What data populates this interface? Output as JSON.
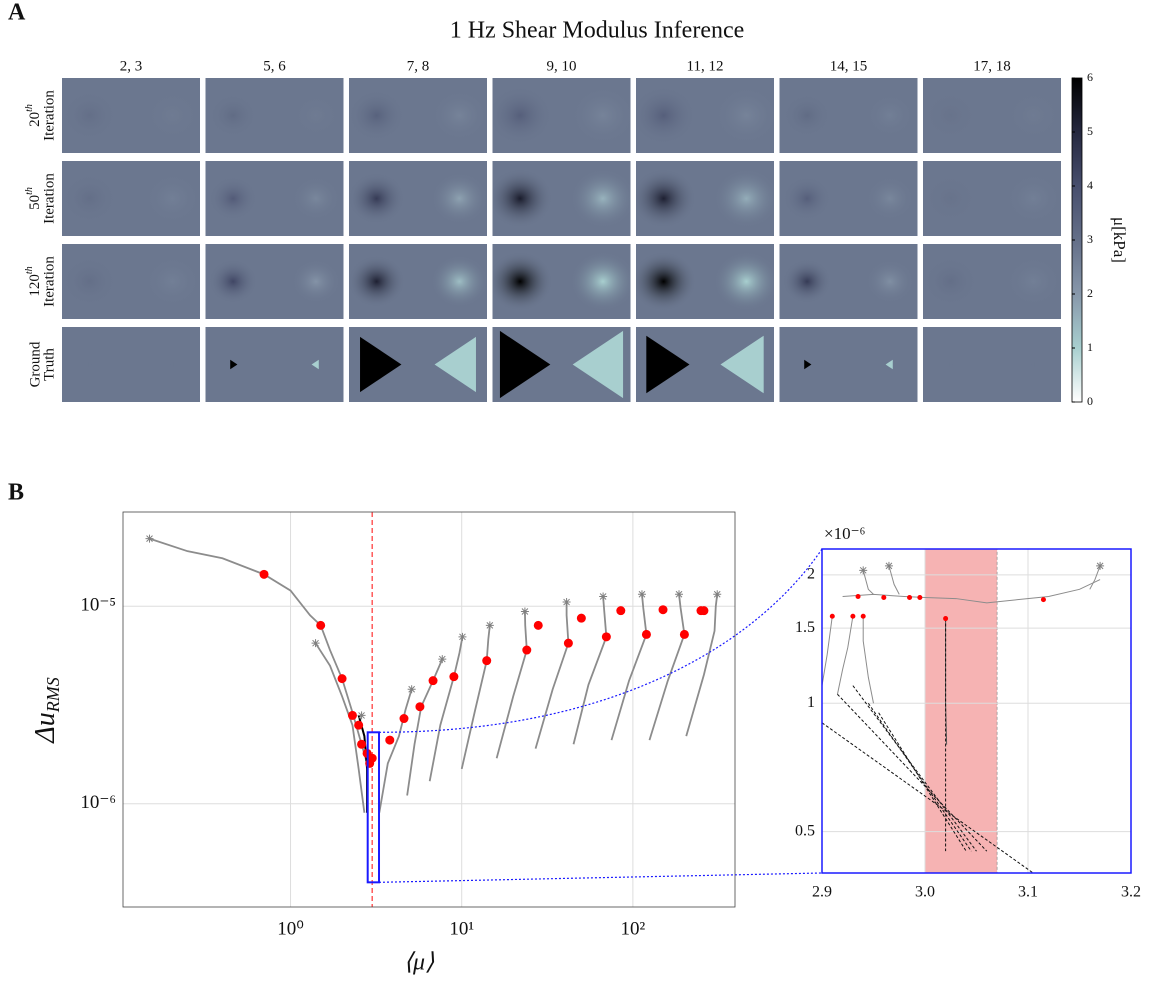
{
  "panel_labels": [
    "A",
    "B"
  ],
  "chart_data": [
    {
      "type": "heatmap",
      "title": "1 Hz Shear Modulus Inference",
      "columns": [
        "2, 3",
        "5, 6",
        "7, 8",
        "9, 10",
        "11, 12",
        "14, 15",
        "17, 18"
      ],
      "rows": [
        {
          "number": "20",
          "suffix": "th",
          "word": "Iteration",
          "shape": "smooth"
        },
        {
          "number": "50",
          "suffix": "th",
          "word": "Iteration",
          "shape": "smooth"
        },
        {
          "number": "120",
          "suffix": "th",
          "word": "Iteration",
          "shape": "smooth"
        },
        {
          "line1": "Ground",
          "line2": "Truth",
          "shape": "block"
        }
      ],
      "values": [
        [
          [
            2.8,
            3.0,
            2.7
          ],
          [
            2.8,
            3.1,
            2.7
          ],
          [
            2.8,
            3.4,
            2.5
          ],
          [
            2.8,
            3.5,
            2.5
          ],
          [
            2.8,
            3.5,
            2.5
          ],
          [
            2.8,
            3.1,
            2.6
          ],
          [
            2.8,
            2.9,
            2.7
          ]
        ],
        [
          [
            2.8,
            3.0,
            2.6
          ],
          [
            2.8,
            3.6,
            2.4
          ],
          [
            2.8,
            4.5,
            1.8
          ],
          [
            2.8,
            5.3,
            1.5
          ],
          [
            2.8,
            5.2,
            1.6
          ],
          [
            2.8,
            3.5,
            2.4
          ],
          [
            2.8,
            2.9,
            2.6
          ]
        ],
        [
          [
            2.8,
            3.0,
            2.6
          ],
          [
            2.8,
            4.2,
            2.1
          ],
          [
            2.8,
            5.2,
            1.3
          ],
          [
            2.8,
            6,
            1
          ],
          [
            2.8,
            6,
            1
          ],
          [
            2.8,
            4.5,
            2.2
          ],
          [
            2.8,
            3.0,
            2.6
          ]
        ],
        [
          [
            2.8,
            2.8,
            2.8
          ],
          [
            2.8,
            6,
            1
          ],
          [
            2.8,
            6,
            1
          ],
          [
            2.8,
            6,
            1
          ],
          [
            2.8,
            6,
            1
          ],
          [
            2.8,
            6,
            1
          ],
          [
            2.8,
            2.8,
            2.8
          ]
        ]
      ],
      "colorbar": {
        "label": "μ[kPa]",
        "lim": [
          0,
          6
        ],
        "ticks": [
          0,
          1,
          2,
          3,
          4,
          5,
          6
        ],
        "colors": [
          "#ffffff",
          "#a8cfcf",
          "#8797aa",
          "#646f88",
          "#474e6d",
          "#25283f",
          "#000000"
        ]
      }
    },
    {
      "type": "line",
      "log_x": true,
      "log_y": true,
      "grid": true,
      "xlabel": "⟨μ⟩",
      "ylabel": {
        "text": "Δu",
        "subscript": "RMS"
      },
      "xlim": [
        0.105,
        395
      ],
      "ylim": [
        3e-07,
        3e-05
      ],
      "xticks": [
        {
          "value": 1,
          "label": "10⁰"
        },
        {
          "value": 10,
          "label": "10¹"
        },
        {
          "value": 100,
          "label": "10²"
        }
      ],
      "yticks": [
        {
          "value": 1e-06,
          "label": "10⁻⁶"
        },
        {
          "value": 1e-05,
          "label": "10⁻⁵"
        }
      ],
      "vline": {
        "value": 3.0,
        "color": "#ff5a5a"
      },
      "series": [
        {
          "color": "#8c8c8c",
          "x": [
            0.15,
            0.25,
            0.4,
            0.7,
            1.0,
            1.3,
            1.5,
            1.7,
            2.0,
            2.3,
            2.6,
            2.8
          ],
          "values": [
            2.2e-05,
            1.9e-05,
            1.75e-05,
            1.45e-05,
            1.2e-05,
            9e-06,
            8e-06,
            6e-06,
            4.3e-06,
            2.9e-06,
            2e-06,
            1.6e-06
          ]
        },
        {
          "color": "#8c8c8c",
          "x": [
            1.4,
            1.7,
            2.0,
            2.3,
            2.5,
            2.7
          ],
          "values": [
            6.5e-06,
            5e-06,
            3.5e-06,
            2.5e-06,
            1.5e-06,
            9e-07
          ]
        },
        {
          "color": "#000000",
          "x": [
            2.5,
            2.7,
            2.8,
            2.8
          ],
          "values": [
            2.8e-06,
            2.2e-06,
            1.5e-06,
            9e-07
          ]
        },
        {
          "color": "#8c8c8c",
          "x": [
            3.3,
            3.7,
            4.3,
            4.7,
            5.1
          ],
          "values": [
            9e-07,
            1.6e-06,
            2.2e-06,
            3e-06,
            3.8e-06
          ]
        },
        {
          "color": "#8c8c8c",
          "x": [
            4.8,
            5.3,
            5.8,
            6.8,
            7.7
          ],
          "values": [
            1.1e-06,
            2e-06,
            3.1e-06,
            4.2e-06,
            5.4e-06
          ]
        },
        {
          "color": "#8c8c8c",
          "x": [
            6.5,
            7.5,
            9,
            9.7,
            10.1
          ],
          "values": [
            1.3e-06,
            2.5e-06,
            4.4e-06,
            5.8e-06,
            7e-06
          ]
        },
        {
          "color": "#8c8c8c",
          "x": [
            10,
            12,
            14,
            14.3,
            14.6
          ],
          "values": [
            1.5e-06,
            3e-06,
            5.3e-06,
            6.8e-06,
            8e-06
          ]
        },
        {
          "color": "#8c8c8c",
          "x": [
            16,
            20,
            24,
            23.5,
            23.4
          ],
          "values": [
            1.7e-06,
            3.5e-06,
            6e-06,
            8e-06,
            9.4e-06
          ]
        },
        {
          "color": "#8c8c8c",
          "x": [
            27,
            34,
            42,
            41,
            41
          ],
          "values": [
            1.9e-06,
            3.8e-06,
            6.5e-06,
            9e-06,
            1.05e-05
          ]
        },
        {
          "color": "#8c8c8c",
          "x": [
            45,
            55,
            70,
            68,
            67
          ],
          "values": [
            2e-06,
            4e-06,
            7e-06,
            9.5e-06,
            1.12e-05
          ]
        },
        {
          "color": "#8c8c8c",
          "x": [
            75,
            95,
            120,
            115,
            113
          ],
          "values": [
            2.1e-06,
            4.2e-06,
            7.2e-06,
            9.8e-06,
            1.15e-05
          ]
        },
        {
          "color": "#8c8c8c",
          "x": [
            125,
            160,
            200,
            190,
            186
          ],
          "values": [
            2.1e-06,
            4.2e-06,
            7.2e-06,
            9.8e-06,
            1.15e-05
          ]
        },
        {
          "color": "#8c8c8c",
          "x": [
            205,
            260,
            300,
            305,
            311
          ],
          "values": [
            2.2e-06,
            4.5e-06,
            7.5e-06,
            1e-05,
            1.15e-05
          ]
        }
      ],
      "markers": {
        "color": "#ff0000",
        "x": [
          0.7,
          1.5,
          2.0,
          2.3,
          2.5,
          2.6,
          2.8,
          2.9,
          3.0,
          3.8,
          4.6,
          5.7,
          6.8,
          9,
          14,
          24,
          28,
          42,
          50,
          70,
          85,
          120,
          150,
          200,
          250,
          260
        ],
        "values": [
          1.45e-05,
          8e-06,
          4.3e-06,
          2.8e-06,
          2.5e-06,
          2e-06,
          1.8e-06,
          1.6e-06,
          1.7e-06,
          2.1e-06,
          2.7e-06,
          3.1e-06,
          4.2e-06,
          4.4e-06,
          5.3e-06,
          6e-06,
          8e-06,
          6.5e-06,
          8.7e-06,
          7e-06,
          9.5e-06,
          7.2e-06,
          9.6e-06,
          7.2e-06,
          9.5e-06,
          9.5e-06
        ]
      },
      "starts": {
        "color": "#808080",
        "x": [
          0.15,
          1.4,
          2.6,
          5.1,
          7.7,
          10.1,
          14.6,
          23.4,
          41,
          67,
          113,
          186,
          311
        ],
        "values": [
          2.2e-05,
          6.5e-06,
          2.8e-06,
          3.8e-06,
          5.4e-06,
          7e-06,
          8e-06,
          9.4e-06,
          1.05e-05,
          1.12e-05,
          1.15e-05,
          1.15e-05,
          1.15e-05
        ]
      }
    },
    {
      "type": "line",
      "log_y": true,
      "grid": true,
      "multiplier_label": "×10⁻⁶",
      "y_multiplier": 1e-06,
      "xlim": [
        2.9,
        3.2
      ],
      "ylim": [
        0.4,
        2.3
      ],
      "xticks": [
        2.9,
        {
          "value": 3,
          "label": "3.0"
        },
        3.1,
        3.2
      ],
      "yticks": [
        0.5,
        1,
        1.5,
        2
      ],
      "band": {
        "x": [
          3.0,
          3.07
        ],
        "color": "#f6b3b3"
      },
      "box_color": "#1a1aff",
      "series": [
        {
          "color": "#8c8c8c",
          "x": [
            2.92,
            2.95,
            2.98,
            3.0,
            3.03,
            3.06,
            3.09,
            3.12,
            3.15,
            3.17
          ],
          "values": [
            1.78,
            1.8,
            1.78,
            1.77,
            1.76,
            1.72,
            1.75,
            1.78,
            1.85,
            1.95
          ]
        },
        {
          "color": "#8c8c8c",
          "x": [
            2.94,
            2.945,
            2.95
          ],
          "values": [
            2.05,
            1.85,
            1.8
          ]
        },
        {
          "color": "#8c8c8c",
          "x": [
            2.965,
            2.97,
            2.975
          ],
          "values": [
            2.1,
            1.9,
            1.8
          ]
        },
        {
          "color": "#8c8c8c",
          "x": [
            3.17,
            3.165,
            3.16
          ],
          "values": [
            2.1,
            1.95,
            1.85
          ]
        },
        {
          "color": "#8c8c8c",
          "x": [
            2.91,
            2.905,
            2.9
          ],
          "values": [
            1.6,
            1.3,
            1.1
          ]
        },
        {
          "color": "#8c8c8c",
          "x": [
            2.93,
            2.925,
            2.92,
            2.915
          ],
          "values": [
            1.6,
            1.35,
            1.2,
            1.05
          ]
        },
        {
          "color": "#8c8c8c",
          "x": [
            2.94,
            2.94,
            2.945,
            2.95
          ],
          "values": [
            1.6,
            1.4,
            1.15,
            1.0
          ]
        },
        {
          "color": "#555555",
          "x": [
            3.02,
            3.02,
            3.021
          ],
          "values": [
            1.58,
            1.0,
            0.8
          ]
        },
        {
          "color": "#111111",
          "dash": true,
          "x": [
            2.9,
            3.105
          ],
          "values": [
            0.9,
            0.4
          ]
        },
        {
          "color": "#111111",
          "dash": true,
          "x": [
            2.915,
            3.06
          ],
          "values": [
            1.05,
            0.45
          ]
        },
        {
          "color": "#111111",
          "dash": true,
          "x": [
            2.93,
            3.05
          ],
          "values": [
            1.1,
            0.45
          ]
        },
        {
          "color": "#111111",
          "dash": true,
          "x": [
            2.945,
            3.045
          ],
          "values": [
            1.0,
            0.45
          ]
        },
        {
          "color": "#111111",
          "dash": true,
          "x": [
            2.955,
            3.04
          ],
          "values": [
            0.95,
            0.45
          ]
        },
        {
          "color": "#111111",
          "dash": true,
          "x": [
            3.02,
            3.02
          ],
          "values": [
            1.58,
            0.45
          ]
        }
      ],
      "markers": {
        "color": "#ff0000",
        "x": [
          2.91,
          2.93,
          2.94,
          2.935,
          2.96,
          2.985,
          2.995,
          3.02,
          3.115
        ],
        "values": [
          1.6,
          1.6,
          1.6,
          1.78,
          1.77,
          1.77,
          1.77,
          1.58,
          1.75
        ]
      },
      "starts": {
        "color": "#808080",
        "x": [
          2.94,
          2.965,
          3.17
        ],
        "values": [
          2.05,
          2.1,
          2.1
        ]
      }
    }
  ]
}
